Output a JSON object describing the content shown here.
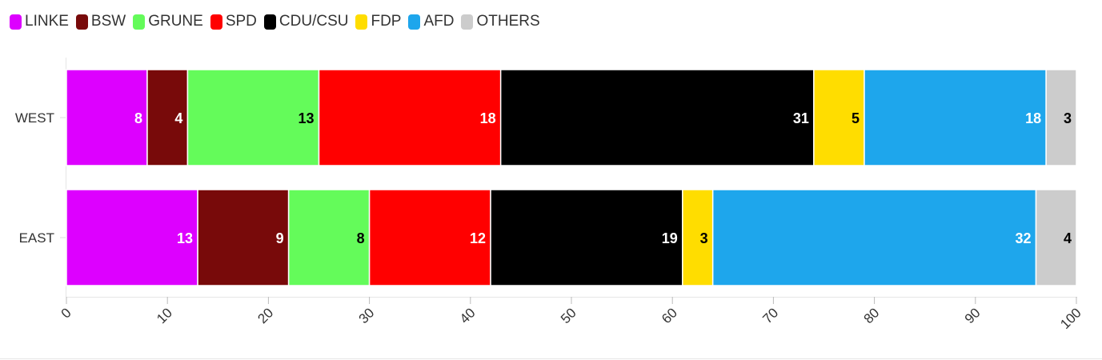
{
  "chart_data": {
    "type": "bar",
    "orientation": "horizontal",
    "stacked": true,
    "categories": [
      "WEST",
      "EAST"
    ],
    "series": [
      {
        "name": "LINKE",
        "color": "#dd00ff",
        "label_color": "#ffffff",
        "values": [
          8,
          13
        ]
      },
      {
        "name": "BSW",
        "color": "#780a0a",
        "label_color": "#ffffff",
        "values": [
          4,
          9
        ]
      },
      {
        "name": "GRUNE",
        "color": "#64fb5a",
        "label_color": "#000000",
        "values": [
          13,
          8
        ]
      },
      {
        "name": "SPD",
        "color": "#ff0000",
        "label_color": "#ffffff",
        "values": [
          18,
          12
        ]
      },
      {
        "name": "CDU/CSU",
        "color": "#000000",
        "label_color": "#ffffff",
        "values": [
          31,
          19
        ]
      },
      {
        "name": "FDP",
        "color": "#ffdd00",
        "label_color": "#000000",
        "values": [
          5,
          3
        ]
      },
      {
        "name": "AFD",
        "color": "#1ea6ec",
        "label_color": "#ffffff",
        "values": [
          18,
          32
        ]
      },
      {
        "name": "OTHERS",
        "color": "#cccccc",
        "label_color": "#000000",
        "values": [
          3,
          4
        ]
      }
    ],
    "xlim": [
      0,
      100
    ],
    "xticks": [
      0,
      10,
      20,
      30,
      40,
      50,
      60,
      70,
      80,
      90,
      100
    ],
    "tick_label_rotation": -45,
    "grid": false,
    "legend_position": "top-left",
    "title": "",
    "xlabel": "",
    "ylabel": ""
  }
}
